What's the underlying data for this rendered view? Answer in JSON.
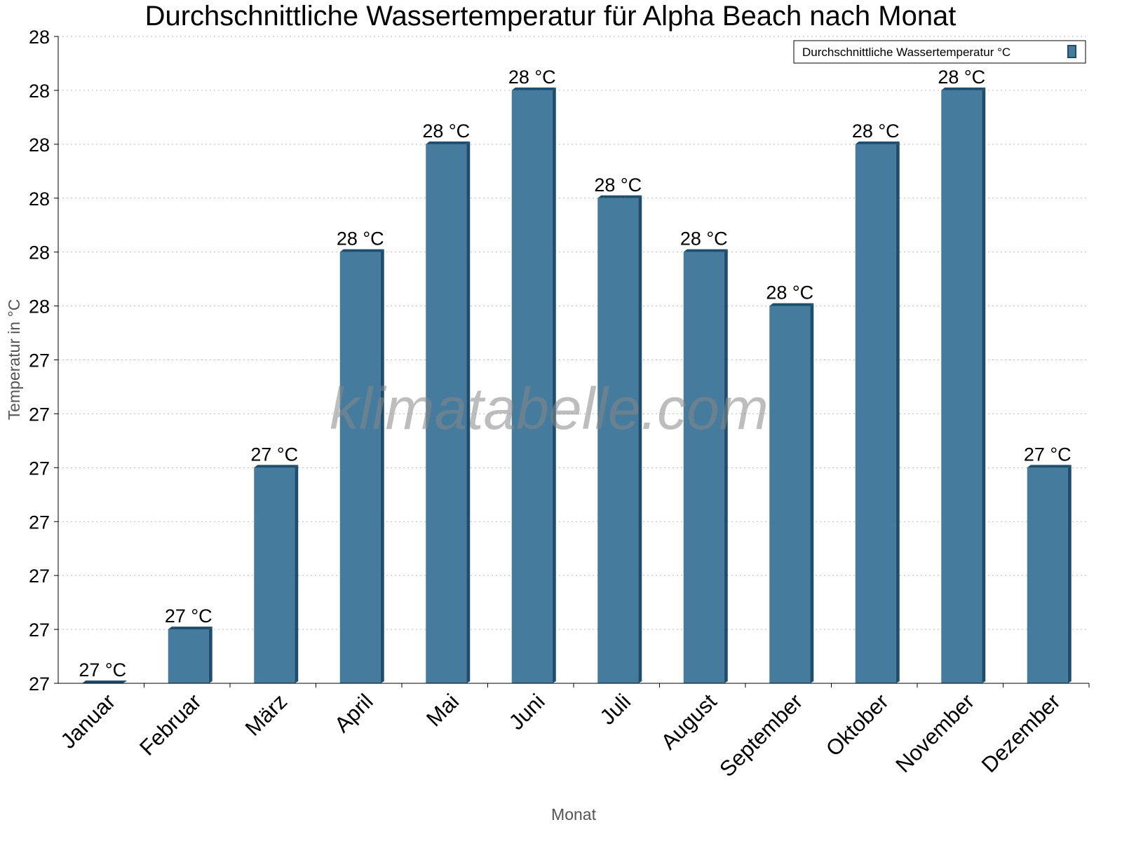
{
  "chart_data": {
    "type": "bar",
    "title": "Durchschnittliche Wassertemperatur für Alpha Beach nach Monat",
    "xlabel": "Monat",
    "ylabel": "Temperatur in °C",
    "categories": [
      "Januar",
      "Februar",
      "März",
      "April",
      "Mai",
      "Juni",
      "Juli",
      "August",
      "September",
      "Oktober",
      "November",
      "Dezember"
    ],
    "series": [
      {
        "name": "Durchschnittliche Wassertemperatur °C",
        "values": [
          26.8,
          26.9,
          27.2,
          27.6,
          27.8,
          27.9,
          27.7,
          27.6,
          27.5,
          27.8,
          27.9,
          27.2
        ],
        "data_labels": [
          "27 °C",
          "27 °C",
          "27 °C",
          "28 °C",
          "28 °C",
          "28 °C",
          "28 °C",
          "28 °C",
          "28 °C",
          "28 °C",
          "28 °C",
          "27 °C"
        ],
        "color": "#457b9d",
        "edge_color": "#1d4e6e"
      }
    ],
    "ylim": [
      26.8,
      28.0
    ],
    "yticks": [
      26.8,
      26.9,
      27.0,
      27.1,
      27.2,
      27.3,
      27.4,
      27.5,
      27.6,
      27.7,
      27.8,
      27.9,
      28.0
    ],
    "ytick_labels": [
      "27",
      "27",
      "27",
      "27",
      "27",
      "27",
      "27",
      "28",
      "28",
      "28",
      "28",
      "28",
      "28"
    ],
    "grid": true,
    "legend_position": "top-right",
    "watermark": "klimatabelle.com"
  }
}
